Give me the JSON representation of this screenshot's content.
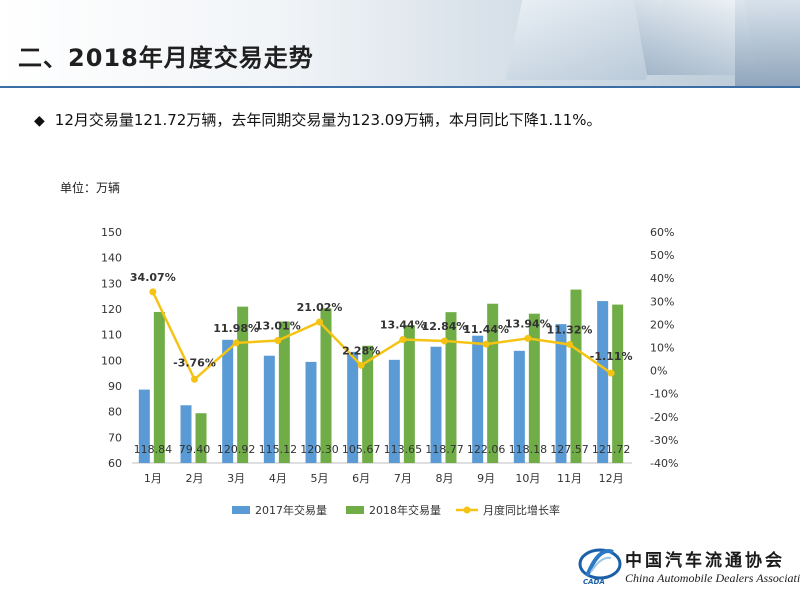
{
  "header": {
    "title": "二、2018年月度交易走势"
  },
  "summary": {
    "bullet": "◆",
    "text": "12月交易量121.72万辆，去年同期交易量为123.09万辆，本月同比下降1.11%。"
  },
  "chart_data": {
    "type": "bar",
    "unit_label": "单位：万辆",
    "categories": [
      "1月",
      "2月",
      "3月",
      "4月",
      "5月",
      "6月",
      "7月",
      "8月",
      "9月",
      "10月",
      "11月",
      "12月"
    ],
    "series": [
      {
        "name": "2017年交易量",
        "kind": "bar",
        "color": "#5b9bd5",
        "values": [
          88.6,
          82.5,
          108.0,
          101.8,
          99.4,
          103.3,
          100.2,
          105.3,
          109.6,
          103.7,
          114.1,
          123.09
        ]
      },
      {
        "name": "2018年交易量",
        "kind": "bar",
        "color": "#70ad47",
        "values": [
          118.84,
          79.4,
          120.92,
          115.12,
          120.3,
          105.67,
          113.65,
          118.77,
          122.06,
          118.18,
          127.57,
          121.72
        ],
        "labels": [
          "118.84",
          "79.40",
          "120.92",
          "115.12",
          "120.30",
          "105.67",
          "113.65",
          "118.77",
          "122.06",
          "118.18",
          "127.57",
          "121.72"
        ]
      },
      {
        "name": "月度同比增长率",
        "kind": "line",
        "axis": "right",
        "color": "#f5c313",
        "values": [
          34.07,
          -3.76,
          11.98,
          13.01,
          21.02,
          2.28,
          13.44,
          12.84,
          11.44,
          13.94,
          11.32,
          -1.11
        ],
        "labels": [
          "34.07%",
          "-3.76%",
          "11.98%",
          "13.01%",
          "21.02%",
          "2.28%",
          "13.44%",
          "12.84%",
          "11.44%",
          "13.94%",
          "11.32%",
          "-1.11%"
        ]
      }
    ],
    "ylim": [
      60,
      150
    ],
    "yticks": [
      "60",
      "70",
      "80",
      "90",
      "100",
      "110",
      "120",
      "130",
      "140",
      "150"
    ],
    "y2lim": [
      -40,
      60
    ],
    "y2ticks": [
      "-40%",
      "-30%",
      "-20%",
      "-10%",
      "0%",
      "10%",
      "20%",
      "30%",
      "40%",
      "50%",
      "60%"
    ],
    "grid": false,
    "legend": "bottom"
  },
  "logo": {
    "cn": "中国汽车流通协会",
    "en": "China Automobile Dealers Association",
    "abbr": "CADA"
  }
}
